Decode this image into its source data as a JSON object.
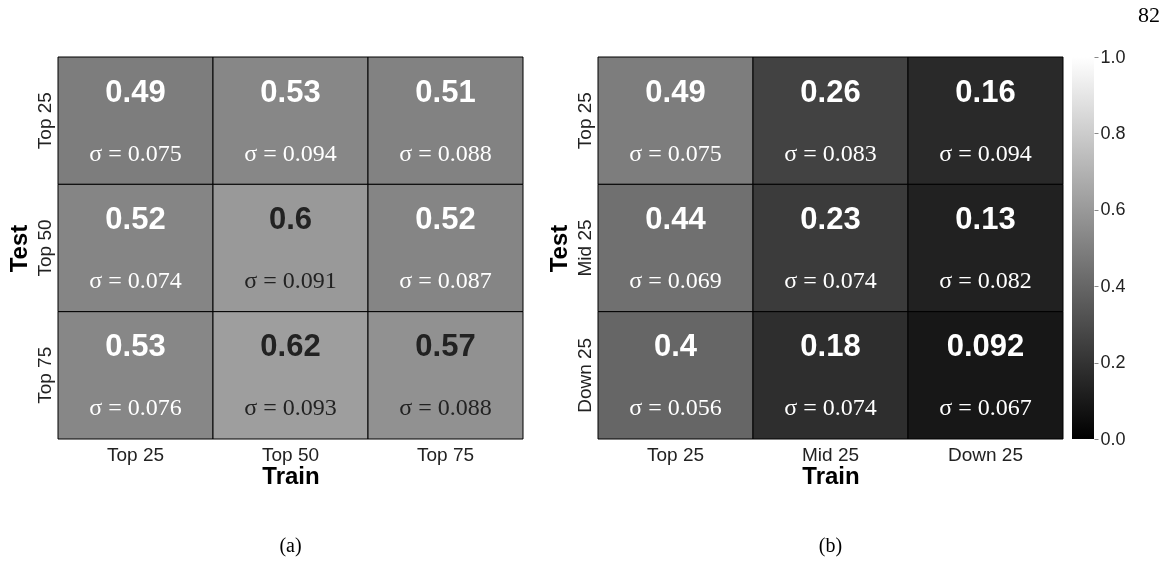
{
  "chart_data": [
    {
      "type": "heatmap",
      "title": "(a)",
      "xlabel": "Train",
      "ylabel": "Test",
      "categories": [
        "Top 25",
        "Top 50",
        "Top 75"
      ],
      "y_categories": [
        "Top 25",
        "Top 50",
        "Top 75"
      ],
      "cells": [
        [
          0.49,
          0.53,
          0.51
        ],
        [
          0.52,
          0.6,
          0.52
        ],
        [
          0.53,
          0.62,
          0.57
        ]
      ],
      "data_labels": true,
      "annotations": [
        "σ = 0.075",
        "σ = 0.094",
        "σ = 0.088",
        "σ = 0.074",
        "σ = 0.091",
        "σ = 0.087",
        "σ = 0.076",
        "σ = 0.093",
        "σ = 0.088"
      ]
    },
    {
      "type": "heatmap",
      "title": "(b)",
      "xlabel": "Train",
      "ylabel": "Test",
      "categories": [
        "Top 25",
        "Mid 25",
        "Down 25"
      ],
      "y_categories": [
        "Top 25",
        "Mid 25",
        "Down 25"
      ],
      "cells": [
        [
          0.49,
          0.26,
          0.16
        ],
        [
          0.44,
          0.23,
          0.13
        ],
        [
          0.4,
          0.18,
          0.092
        ]
      ],
      "clim": [
        0,
        1
      ],
      "data_labels": true,
      "cticks": [
        {
          "value": 0,
          "label": "0.0"
        },
        {
          "value": 0.2,
          "label": "0.2"
        },
        {
          "value": 0.4,
          "label": "0.4"
        },
        {
          "value": 0.6,
          "label": "0.6"
        },
        {
          "value": 0.8,
          "label": "0.8"
        },
        {
          "value": 1,
          "label": "1.0"
        }
      ],
      "annotations": [
        "σ = 0.075",
        "σ = 0.083",
        "σ = 0.094",
        "σ = 0.069",
        "σ = 0.074",
        "σ = 0.082",
        "σ = 0.056",
        "σ = 0.074",
        "σ = 0.067",
        "82"
      ]
    }
  ]
}
